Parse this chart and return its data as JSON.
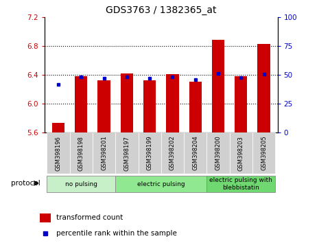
{
  "title": "GDS3763 / 1382365_at",
  "samples": [
    "GSM398196",
    "GSM398198",
    "GSM398201",
    "GSM398197",
    "GSM398199",
    "GSM398202",
    "GSM398204",
    "GSM398200",
    "GSM398203",
    "GSM398205"
  ],
  "red_values": [
    5.73,
    6.38,
    6.32,
    6.42,
    6.32,
    6.41,
    6.3,
    6.88,
    6.38,
    6.83
  ],
  "blue_values": [
    6.27,
    6.37,
    6.35,
    6.37,
    6.35,
    6.37,
    6.33,
    6.42,
    6.36,
    6.41
  ],
  "ylim_left": [
    5.6,
    7.2
  ],
  "ylim_right": [
    0,
    100
  ],
  "yticks_left": [
    5.6,
    6.0,
    6.4,
    6.8,
    7.2
  ],
  "yticks_right": [
    0,
    25,
    50,
    75,
    100
  ],
  "groups": [
    {
      "label": "no pulsing",
      "indices": [
        0,
        1,
        2
      ],
      "color": "#c8f0c8"
    },
    {
      "label": "electric pulsing",
      "indices": [
        3,
        4,
        5,
        6
      ],
      "color": "#90e890"
    },
    {
      "label": "electric pulsing with\nblebbistatin",
      "indices": [
        7,
        8,
        9
      ],
      "color": "#70d870"
    }
  ],
  "bar_color": "#cc0000",
  "dot_color": "#0000cc",
  "bar_bottom": 5.6,
  "bar_width": 0.55,
  "legend_items": [
    {
      "label": "transformed count",
      "color": "#cc0000"
    },
    {
      "label": "percentile rank within the sample",
      "color": "#0000cc"
    }
  ],
  "protocol_label": "protocol",
  "tick_label_color_left": "#cc0000",
  "tick_label_color_right": "#0000cc",
  "title_fontsize": 10,
  "tick_gray": "#d0d0d0"
}
